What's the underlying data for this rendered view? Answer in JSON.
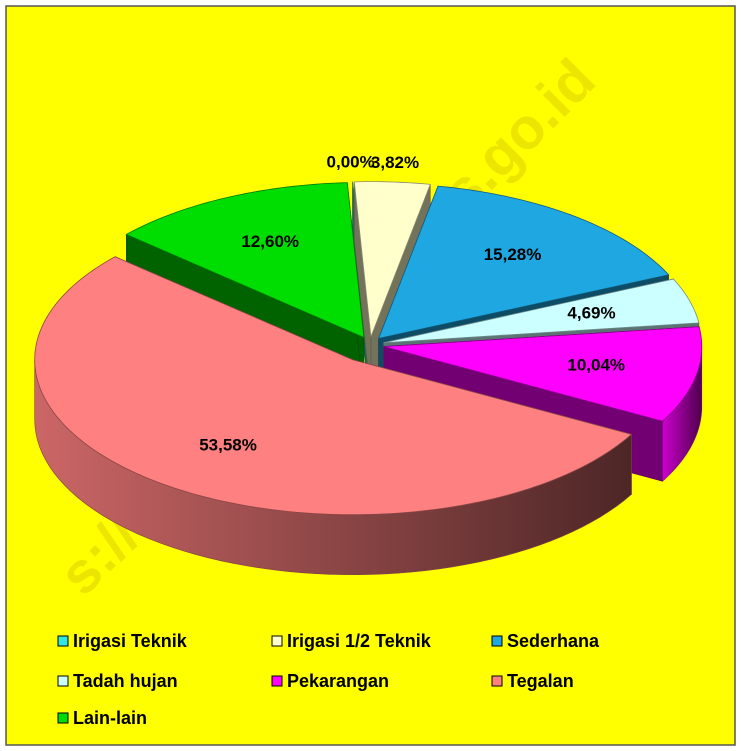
{
  "chart_data": {
    "type": "pie",
    "watermark": "s://magelangkab.bps.go.id",
    "categories": [
      "Irigasi Teknik",
      "Irigasi 1/2 Teknik",
      "Sederhana",
      "Tadah hujan",
      "Pekarangan",
      "Tegalan",
      "Lain-lain"
    ],
    "values": [
      0.0,
      3.82,
      15.28,
      4.69,
      10.04,
      53.58,
      12.6
    ],
    "value_labels": [
      "0,00%",
      "3,82%",
      "15,28%",
      "4,69%",
      "10,04%",
      "53,58%",
      "12,60%"
    ],
    "colors": [
      "#33e6e6",
      "#ffffcc",
      "#1ea7e1",
      "#ccffff",
      "#ff00ff",
      "#ff8080",
      "#00dd00"
    ],
    "legend": "bottom"
  }
}
